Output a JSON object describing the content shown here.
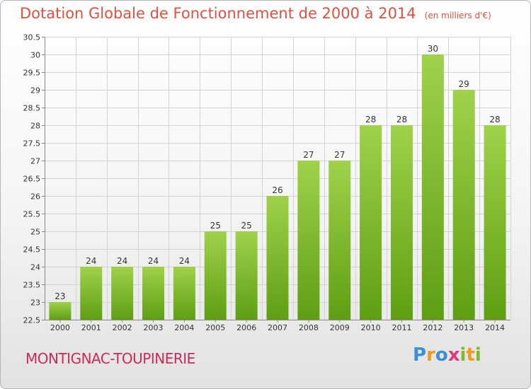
{
  "header": {
    "title": "Dotation Globale de Fonctionnement de 2000 à 2014",
    "unit": "(en milliers d'€)"
  },
  "footer": {
    "commune": "MONTIGNAC-TOUPINERIE",
    "logo": "Proxiti"
  },
  "colors": {
    "bar_top": "#9fd24a",
    "bar_bottom": "#5f9e12",
    "title": "#e0503e",
    "commune": "#cc2a57"
  },
  "chart_data": {
    "type": "bar",
    "title": "Dotation Globale de Fonctionnement de 2000 à 2014",
    "categories": [
      "2000",
      "2001",
      "2002",
      "2003",
      "2004",
      "2005",
      "2006",
      "2007",
      "2008",
      "2009",
      "2010",
      "2011",
      "2012",
      "2013",
      "2014"
    ],
    "values": [
      23,
      24,
      24,
      24,
      24,
      25,
      25,
      26,
      27,
      27,
      28,
      28,
      30,
      29,
      28
    ],
    "ylim": [
      22.5,
      30.5
    ],
    "yticks": [
      22.5,
      23,
      23.5,
      24,
      24.5,
      25,
      25.5,
      26,
      26.5,
      27,
      27.5,
      28,
      28.5,
      29,
      29.5,
      30,
      30.5
    ],
    "ytick_labels": [
      "22.5",
      "23",
      "23.5",
      "24",
      "24.5",
      "25",
      "25.5",
      "26",
      "26.5",
      "27",
      "27.5",
      "28",
      "28.5",
      "29",
      "29.5",
      "30",
      "30.5"
    ],
    "grid": true,
    "xlabel": "",
    "ylabel": ""
  }
}
